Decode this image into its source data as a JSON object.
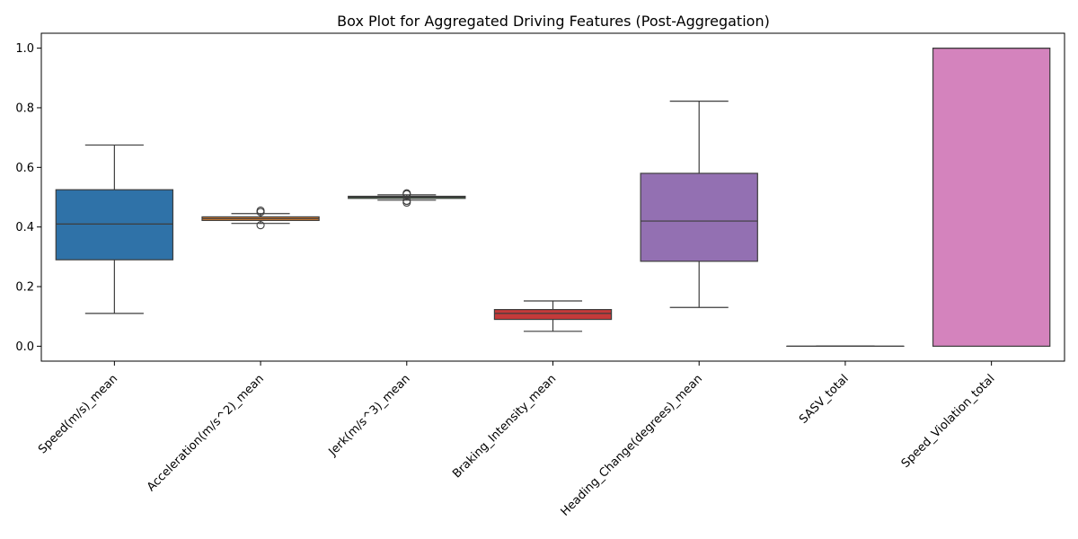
{
  "chart_data": {
    "type": "box",
    "title": "Box Plot for Aggregated Driving Features (Post-Aggregation)",
    "xlabel": "",
    "ylabel": "",
    "ylim": [
      -0.05,
      1.05
    ],
    "yticks": [
      0.0,
      0.2,
      0.4,
      0.6,
      0.8,
      1.0
    ],
    "ytick_labels": [
      "0.0",
      "0.2",
      "0.4",
      "0.6",
      "0.8",
      "1.0"
    ],
    "grid": false,
    "categories": [
      "Speed(m/s)_mean",
      "Acceleration(m/s^2)_mean",
      "Jerk(m/s^3)_mean",
      "Braking_Intensity_mean",
      "Heading_Change(degrees)_mean",
      "SASV_total",
      "Speed_Violation_total"
    ],
    "boxes": [
      {
        "whislo": 0.11,
        "q1": 0.29,
        "med": 0.41,
        "q3": 0.525,
        "whishi": 0.675,
        "fliers": [],
        "color": "#2f72a8"
      },
      {
        "whislo": 0.412,
        "q1": 0.422,
        "med": 0.428,
        "q3": 0.434,
        "whishi": 0.445,
        "fliers": [
          0.406,
          0.45,
          0.455
        ],
        "color": "#ec8631"
      },
      {
        "whislo": 0.49,
        "q1": 0.496,
        "med": 0.5,
        "q3": 0.503,
        "whishi": 0.508,
        "fliers": [
          0.482,
          0.488,
          0.51,
          0.513
        ],
        "color": "#3a9a3a"
      },
      {
        "whislo": 0.05,
        "q1": 0.09,
        "med": 0.11,
        "q3": 0.123,
        "whishi": 0.152,
        "fliers": [],
        "color": "#c43a3a"
      },
      {
        "whislo": 0.13,
        "q1": 0.285,
        "med": 0.42,
        "q3": 0.58,
        "whishi": 0.822,
        "fliers": [],
        "color": "#9370b2"
      },
      {
        "whislo": 0.0,
        "q1": 0.0,
        "med": 0.0,
        "q3": 0.0,
        "whishi": 0.0,
        "fliers": [],
        "color": "#8c564b"
      },
      {
        "whislo": 0.0,
        "q1": 0.0,
        "med": 1.0,
        "q3": 1.0,
        "whishi": 1.0,
        "fliers": [],
        "color": "#d483bd"
      }
    ]
  }
}
